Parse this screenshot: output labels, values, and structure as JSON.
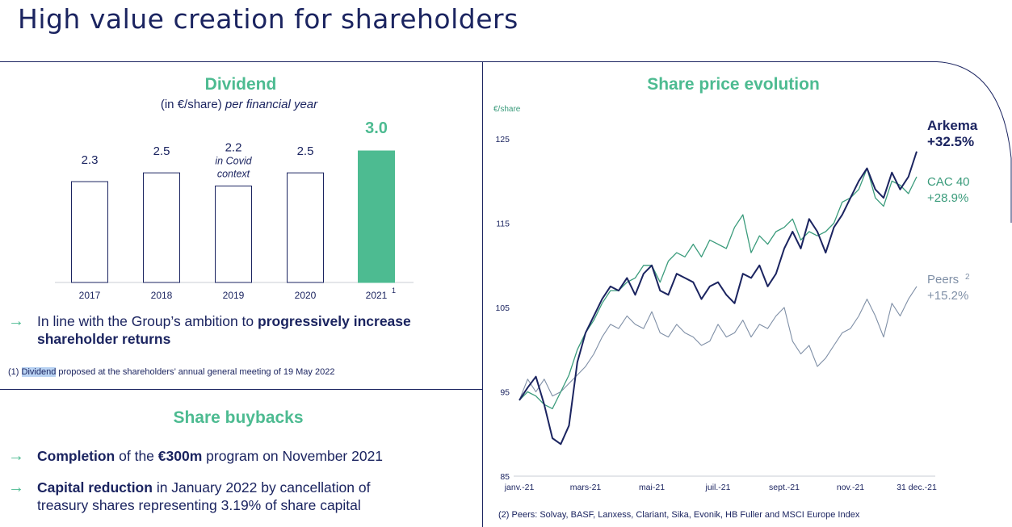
{
  "page": {
    "title": "High value creation for shareholders"
  },
  "dividend": {
    "title": "Dividend",
    "subtitle_plain": "(in €/share)",
    "subtitle_italic": "per financial year",
    "bullet_text": "In line with the Group’s ambition to",
    "bullet_bold": "progressively increase shareholder returns",
    "footnote_prefix": "(1)",
    "footnote_hl": "Dividend",
    "footnote_rest": "proposed at the shareholders’ annual general meeting of 19 May 2022"
  },
  "buybacks": {
    "title": "Share buybacks",
    "bullet1_bold1": "Completion",
    "bullet1_mid": "of the",
    "bullet1_bold2": "€300m",
    "bullet1_rest": "program on November 2021",
    "bullet2_bold": "Capital reduction",
    "bullet2_rest_line1": "in January 2022 by cancellation of",
    "bullet2_rest_line2": "treasury shares representing 3.19% of share capital"
  },
  "share_price": {
    "title": "Share price evolution",
    "footnote": "(2) Peers: Solvay, BASF, Lanxess, Clariant, Sika, Evonik, HB Fuller and MSCI Europe Index"
  },
  "colors": {
    "navy": "#1b2460",
    "green": "#4dbb91",
    "chart_green": "#3a9b7b",
    "peers": "#7f8fa6"
  },
  "chart_data": [
    {
      "type": "bar",
      "title": "Dividend",
      "subtitle": "(in €/share) per financial year",
      "categories": [
        "2017",
        "2018",
        "2019",
        "2020",
        "2021"
      ],
      "category_superscripts": [
        "",
        "",
        "",
        "",
        "1"
      ],
      "values": [
        2.3,
        2.5,
        2.2,
        2.5,
        3.0
      ],
      "value_labels": [
        "2.3",
        "2.5",
        "2.2",
        "2.5",
        "3.0"
      ],
      "annotations": [
        {
          "category": "2019",
          "text_line1": "in Covid",
          "text_line2": "context"
        }
      ],
      "highlight_category": "2021",
      "ylim": [
        0,
        3.0
      ]
    },
    {
      "type": "line",
      "title": "Share price evolution",
      "ylabel": "€/share",
      "yticks": [
        85,
        95,
        105,
        115,
        125
      ],
      "ylim": [
        85,
        128
      ],
      "xticks": [
        "janv.-21",
        "mars-21",
        "mai-21",
        "juil.-21",
        "sept.-21",
        "nov.-21",
        "31 dec.-21"
      ],
      "xlim": [
        0,
        12
      ],
      "xtick_positions": [
        0,
        2,
        4,
        6,
        8,
        10,
        12
      ],
      "grid": false,
      "series": [
        {
          "name": "Arkema",
          "end_label": "+32.5%",
          "x": [
            0,
            0.25,
            0.5,
            0.75,
            1.0,
            1.25,
            1.5,
            1.75,
            2.0,
            2.25,
            2.5,
            2.75,
            3.0,
            3.25,
            3.5,
            3.75,
            4.0,
            4.25,
            4.5,
            4.75,
            5.0,
            5.25,
            5.5,
            5.75,
            6.0,
            6.25,
            6.5,
            6.75,
            7.0,
            7.25,
            7.5,
            7.75,
            8.0,
            8.25,
            8.5,
            8.75,
            9.0,
            9.25,
            9.5,
            9.75,
            10.0,
            10.25,
            10.5,
            10.75,
            11.0,
            11.25,
            11.5,
            11.75,
            12.0
          ],
          "values": [
            94.0,
            95.5,
            96.8,
            93.5,
            89.5,
            88.8,
            91.0,
            98.5,
            102.0,
            104.0,
            106.0,
            107.5,
            107.0,
            108.5,
            106.5,
            109.0,
            110.0,
            107.0,
            106.5,
            109.0,
            108.5,
            108.0,
            106.0,
            107.5,
            108.0,
            106.5,
            105.5,
            109.0,
            108.5,
            110.0,
            107.5,
            109.0,
            112.0,
            114.0,
            112.0,
            115.5,
            114.0,
            111.5,
            114.5,
            116.0,
            118.0,
            120.0,
            121.5,
            119.0,
            118.0,
            121.0,
            119.0,
            120.5,
            123.5
          ]
        },
        {
          "name": "CAC 40",
          "end_label": "+28.9%",
          "x": [
            0,
            0.25,
            0.5,
            0.75,
            1.0,
            1.25,
            1.5,
            1.75,
            2.0,
            2.25,
            2.5,
            2.75,
            3.0,
            3.25,
            3.5,
            3.75,
            4.0,
            4.25,
            4.5,
            4.75,
            5.0,
            5.25,
            5.5,
            5.75,
            6.0,
            6.25,
            6.5,
            6.75,
            7.0,
            7.25,
            7.5,
            7.75,
            8.0,
            8.25,
            8.5,
            8.75,
            9.0,
            9.25,
            9.5,
            9.75,
            10.0,
            10.25,
            10.5,
            10.75,
            11.0,
            11.25,
            11.5,
            11.75,
            12.0
          ],
          "values": [
            94.0,
            95.0,
            94.5,
            93.5,
            93.0,
            95.0,
            97.0,
            100.0,
            102.0,
            103.5,
            105.5,
            107.0,
            107.0,
            108.0,
            108.5,
            110.0,
            110.0,
            108.0,
            110.5,
            111.5,
            111.0,
            112.5,
            111.0,
            113.0,
            112.5,
            112.0,
            114.5,
            116.0,
            111.5,
            113.5,
            112.5,
            114.0,
            114.5,
            115.5,
            113.0,
            114.0,
            113.5,
            114.0,
            115.0,
            117.5,
            118.0,
            119.0,
            121.5,
            118.0,
            117.0,
            120.0,
            119.5,
            118.5,
            120.5
          ]
        },
        {
          "name": "Peers",
          "name_superscript": "2",
          "end_label": "+15.2%",
          "x": [
            0,
            0.25,
            0.5,
            0.75,
            1.0,
            1.25,
            1.5,
            1.75,
            2.0,
            2.25,
            2.5,
            2.75,
            3.0,
            3.25,
            3.5,
            3.75,
            4.0,
            4.25,
            4.5,
            4.75,
            5.0,
            5.25,
            5.5,
            5.75,
            6.0,
            6.25,
            6.5,
            6.75,
            7.0,
            7.25,
            7.5,
            7.75,
            8.0,
            8.25,
            8.5,
            8.75,
            9.0,
            9.25,
            9.5,
            9.75,
            10.0,
            10.25,
            10.5,
            10.75,
            11.0,
            11.25,
            11.5,
            11.75,
            12.0
          ],
          "values": [
            94.0,
            96.5,
            95.0,
            96.5,
            94.5,
            95.0,
            96.0,
            97.0,
            98.0,
            99.5,
            101.5,
            103.0,
            102.5,
            104.0,
            103.0,
            102.5,
            104.5,
            102.0,
            101.5,
            103.0,
            102.0,
            101.5,
            100.5,
            101.0,
            103.0,
            101.5,
            102.0,
            103.5,
            101.5,
            103.0,
            102.5,
            104.0,
            105.0,
            101.0,
            99.5,
            100.5,
            98.0,
            99.0,
            100.5,
            102.0,
            102.5,
            104.0,
            106.0,
            104.0,
            101.5,
            105.5,
            104.0,
            106.0,
            107.5
          ]
        }
      ]
    }
  ]
}
